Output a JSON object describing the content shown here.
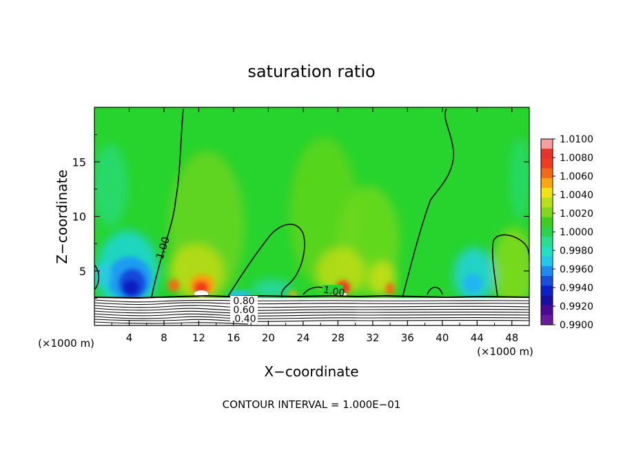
{
  "chart_data": {
    "type": "heatmap",
    "title": "saturation ratio",
    "xlabel": "X−coordinate",
    "ylabel": "Z−coordinate",
    "x_unit_left": "(×1000 m)",
    "x_unit_right": "(×1000 m)",
    "footer": "CONTOUR INTERVAL = 1.000E−01",
    "xlim": [
      0,
      50
    ],
    "ylim": [
      0,
      20
    ],
    "x_ticks": [
      4,
      8,
      12,
      16,
      20,
      24,
      28,
      32,
      36,
      40,
      44,
      48
    ],
    "y_ticks": [
      5,
      10,
      15
    ],
    "colorbar": {
      "labels": [
        "1.0100",
        "1.0080",
        "1.0060",
        "1.0040",
        "1.0020",
        "1.0000",
        "0.9980",
        "0.9960",
        "0.9940",
        "0.9920",
        "0.9900"
      ],
      "colors": [
        "#f4a0a0",
        "#e8332a",
        "#f23a1d",
        "#f46a14",
        "#f9a70c",
        "#f2e410",
        "#b8e014",
        "#7fd818",
        "#3ccf1c",
        "#2ad54a",
        "#27e08a",
        "#1ee2c2",
        "#20c8ee",
        "#1d8cf2",
        "#1550e0",
        "#0b22c8",
        "#1a0ea6",
        "#4a0a96",
        "#6a1a9e"
      ]
    },
    "contour_labels": [
      "1.00",
      "1.00",
      "0.80",
      "0.60",
      "0.40"
    ],
    "series": [
      {
        "name": "",
        "x": [
          2.6,
          3.0,
          3.5,
          4.0,
          4.8,
          5.6,
          6.0,
          6.5
        ],
        "y": [
          3.2,
          4.1,
          4.5,
          4.7,
          4.8,
          4.3,
          3.6,
          3.0
        ]
      },
      {
        "name": "",
        "x": [
          12.0,
          12.3,
          12.8,
          13.3
        ],
        "y": [
          3.0,
          3.6,
          3.8,
          3.2
        ]
      },
      {
        "name": "",
        "x": [
          28.1,
          28.4,
          28.9,
          29.4
        ],
        "y": [
          3.0,
          3.5,
          3.7,
          3.2
        ]
      }
    ]
  }
}
